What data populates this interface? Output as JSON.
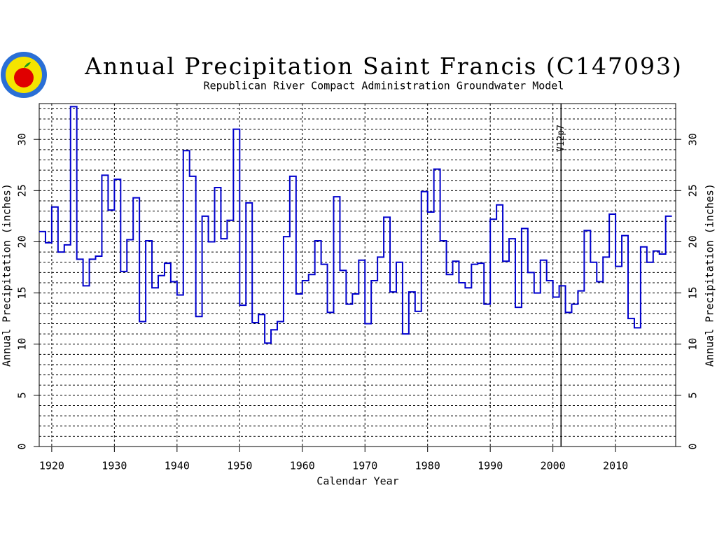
{
  "chart_data": {
    "type": "step",
    "title": "Annual Precipitation Saint Francis (C147093)",
    "subtitle": "Republican River Compact Administration Groundwater Model",
    "xlabel": "Calendar Year",
    "ylabel": "Annual Precipitation (inches)",
    "x": [
      1918,
      1919,
      1920,
      1921,
      1922,
      1923,
      1924,
      1925,
      1926,
      1927,
      1928,
      1929,
      1930,
      1931,
      1932,
      1933,
      1934,
      1935,
      1936,
      1937,
      1938,
      1939,
      1940,
      1941,
      1942,
      1943,
      1944,
      1945,
      1946,
      1947,
      1948,
      1949,
      1950,
      1951,
      1952,
      1953,
      1954,
      1955,
      1956,
      1957,
      1958,
      1959,
      1960,
      1961,
      1962,
      1963,
      1964,
      1965,
      1966,
      1967,
      1968,
      1969,
      1970,
      1971,
      1972,
      1973,
      1974,
      1975,
      1976,
      1977,
      1978,
      1979,
      1980,
      1981,
      1982,
      1983,
      1984,
      1985,
      1986,
      1987,
      1988,
      1989,
      1990,
      1991,
      1992,
      1993,
      1994,
      1995,
      1996,
      1997,
      1998,
      1999,
      2000,
      2001,
      2002,
      2003,
      2004,
      2005,
      2006,
      2007,
      2008,
      2009,
      2010,
      2011,
      2012,
      2013,
      2014,
      2015,
      2016,
      2017,
      2018
    ],
    "series": [
      {
        "name": "Annual Precipitation",
        "color": "#0000cc",
        "values": [
          21.0,
          19.9,
          23.4,
          19.0,
          19.7,
          33.2,
          18.3,
          15.7,
          18.3,
          18.6,
          26.5,
          23.1,
          26.1,
          17.1,
          20.2,
          24.3,
          12.2,
          20.1,
          15.5,
          16.7,
          17.9,
          16.1,
          14.8,
          28.9,
          26.4,
          12.7,
          22.5,
          20.0,
          25.3,
          20.3,
          22.1,
          31.0,
          13.8,
          23.8,
          12.1,
          12.9,
          10.1,
          11.4,
          12.2,
          20.5,
          26.4,
          14.9,
          16.2,
          16.8,
          20.1,
          17.8,
          13.1,
          24.4,
          17.2,
          13.9,
          14.9,
          18.2,
          12.0,
          16.2,
          18.5,
          22.4,
          15.1,
          18.0,
          11.0,
          15.1,
          13.2,
          24.9,
          22.9,
          27.1,
          20.1,
          16.8,
          18.1,
          16.0,
          15.5,
          17.8,
          17.9,
          13.9,
          22.2,
          23.6,
          18.1,
          20.3,
          13.6,
          21.3,
          17.0,
          15.0,
          18.2,
          16.2,
          14.6,
          15.7,
          13.1,
          13.9,
          15.2,
          21.1,
          18.0,
          16.1,
          18.5,
          22.7,
          17.6,
          20.6,
          12.5,
          11.6,
          19.5,
          18.0,
          19.1,
          18.8,
          22.5
        ]
      }
    ],
    "xlim": [
      1918,
      2019.6
    ],
    "xticks": [
      1920,
      1930,
      1940,
      1950,
      1960,
      1970,
      1980,
      1990,
      2000,
      2010
    ],
    "ylim": [
      0,
      33.5
    ],
    "yticks": [
      0,
      5,
      10,
      15,
      20,
      25,
      30
    ],
    "grid": true,
    "grid_minor_step": 1,
    "annotations": [
      {
        "x": 2001.3,
        "text": "V12p7"
      }
    ]
  }
}
